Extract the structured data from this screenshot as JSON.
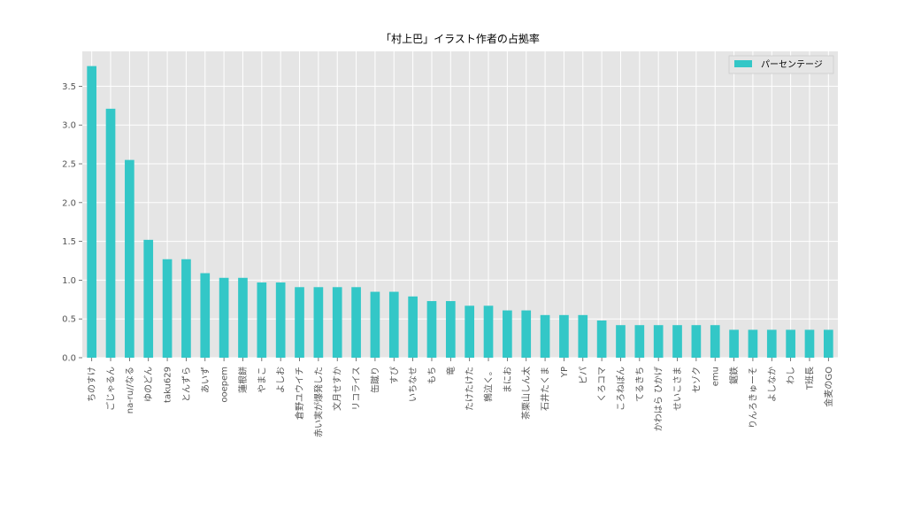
{
  "chart_data": {
    "type": "bar",
    "title": "「村上巴」イラスト作者の占拠率",
    "xlabel": "",
    "ylabel": "",
    "ylim": [
      0,
      3.95
    ],
    "yticks": [
      "0.0",
      "0.5",
      "1.0",
      "1.5",
      "2.0",
      "2.5",
      "3.0",
      "3.5"
    ],
    "grid": true,
    "legend_position": "top-right",
    "bar_color": "#33c7c7",
    "plot_background": "#e5e5e5",
    "categories": [
      "ちのすけ",
      "ごじゃるん",
      "na-ru//なる",
      "ゆのどん",
      "taku629",
      "とんずら",
      "あいず",
      "ooepem",
      "蓮根餅",
      "やまこ",
      "よしお",
      "倉野ユウイチ",
      "赤い実が爆発した",
      "文月せすか",
      "リコライス",
      "缶蹴り",
      "すぴ",
      "いちなせ",
      "もち",
      "竜",
      "たけたけた",
      "鶉泣く。",
      "まにお",
      "茶栗山しん太",
      "石井たくま",
      "YP",
      "ピパ",
      "くろコマ",
      "ころねぽん",
      "てるきち",
      "かわはら ひかげ",
      "せいこさま",
      "セゾク",
      "emu",
      "鋸鉄",
      "りんろきゅーそ",
      "よしなか",
      "わし",
      "T班長",
      "金麦のGO"
    ],
    "series": [
      {
        "name": "パーセンテージ",
        "values": [
          3.76,
          3.21,
          2.55,
          1.52,
          1.27,
          1.27,
          1.09,
          1.03,
          1.03,
          0.97,
          0.97,
          0.91,
          0.91,
          0.91,
          0.91,
          0.85,
          0.85,
          0.79,
          0.73,
          0.73,
          0.67,
          0.67,
          0.61,
          0.61,
          0.55,
          0.55,
          0.55,
          0.48,
          0.42,
          0.42,
          0.42,
          0.42,
          0.42,
          0.42,
          0.36,
          0.36,
          0.36,
          0.36,
          0.36,
          0.36
        ]
      }
    ]
  }
}
